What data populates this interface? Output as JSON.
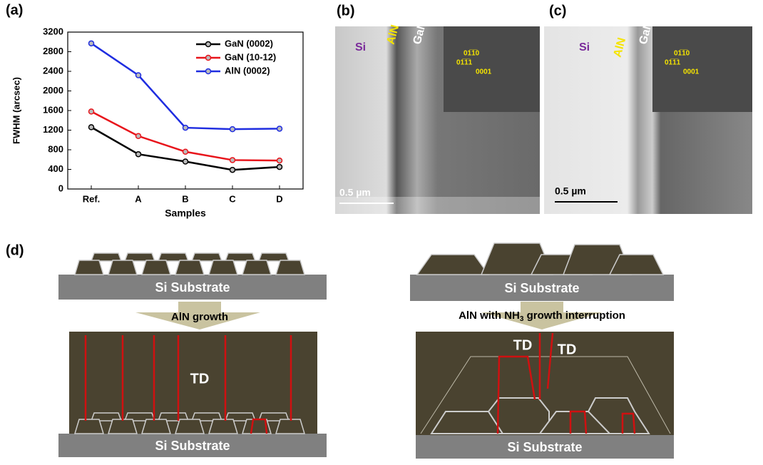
{
  "chart_data": {
    "type": "line",
    "panel": "(a)",
    "xlabel": "Samples",
    "ylabel": "FWHM (arcsec)",
    "categories": [
      "Ref.",
      "A",
      "B",
      "C",
      "D"
    ],
    "series": [
      {
        "name": "GaN (0002)",
        "color": "#000000",
        "values": [
          1260,
          710,
          560,
          390,
          450
        ]
      },
      {
        "name": "GaN (10-12)",
        "color": "#e8141b",
        "values": [
          1580,
          1080,
          760,
          590,
          580
        ]
      },
      {
        "name": "AlN (0002)",
        "color": "#1f2de0",
        "values": [
          2970,
          2320,
          1250,
          1220,
          1230
        ]
      }
    ],
    "ylim": [
      0,
      3200
    ],
    "yticks": [
      0,
      400,
      800,
      1200,
      1600,
      2000,
      2400,
      2800,
      3200
    ],
    "legend": "upper right"
  },
  "panel_b": {
    "label": "(b)",
    "si": "Si",
    "aln": "AlN",
    "gan": "GaN",
    "fft": [
      "01̅1̅0",
      "01̅1̅1",
      "0001"
    ],
    "scale": "0.5 µm"
  },
  "panel_c": {
    "label": "(c)",
    "si": "Si",
    "aln": "AlN",
    "gan": "GaN",
    "fft": [
      "01̅1̅0",
      "01̅1̅1",
      "0001"
    ],
    "scale": "0.5 µm"
  },
  "panel_d": {
    "label": "(d)",
    "left": {
      "substrate_top": "Si Substrate",
      "arrow": "AlN growth",
      "td": "TD",
      "substrate_bottom": "Si Substrate"
    },
    "right": {
      "substrate_top": "Si Substrate",
      "arrow": [
        "AlN with NH",
        "3",
        " growth interruption"
      ],
      "td": [
        "TD",
        "TD"
      ],
      "substrate_bottom": "Si Substrate"
    }
  }
}
